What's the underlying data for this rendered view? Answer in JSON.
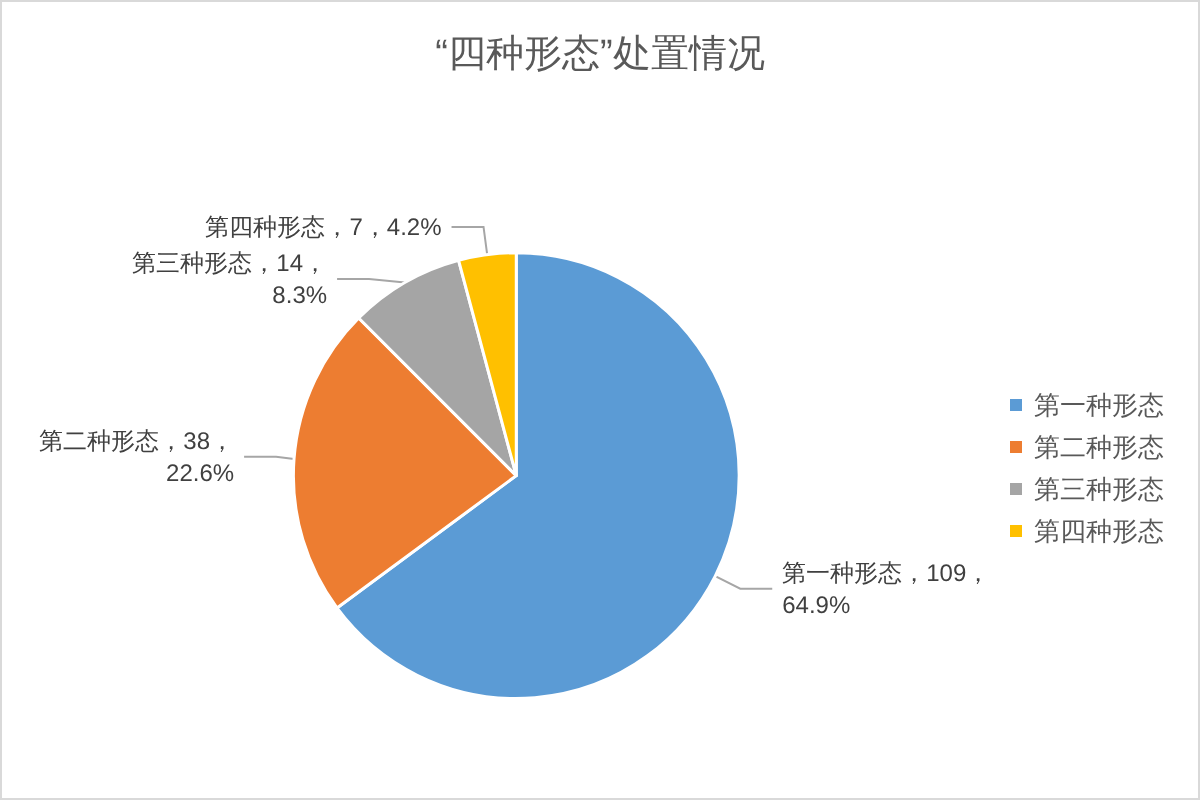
{
  "chart_data": {
    "type": "pie",
    "title": "“四种形态”处置情况",
    "categories": [
      "第一种形态",
      "第二种形态",
      "第三种形态",
      "第四种形态"
    ],
    "values": [
      109,
      38,
      14,
      7
    ],
    "colors": [
      "#5b9bd5",
      "#ed7d31",
      "#a5a5a5",
      "#ffc000"
    ],
    "value_labels": [
      "第一种形态，109，64.9%",
      "第二种形态，38，22.6%",
      "第三种形态，14，8.3%",
      "第四种形态，7，4.2%"
    ],
    "legend": "right"
  }
}
